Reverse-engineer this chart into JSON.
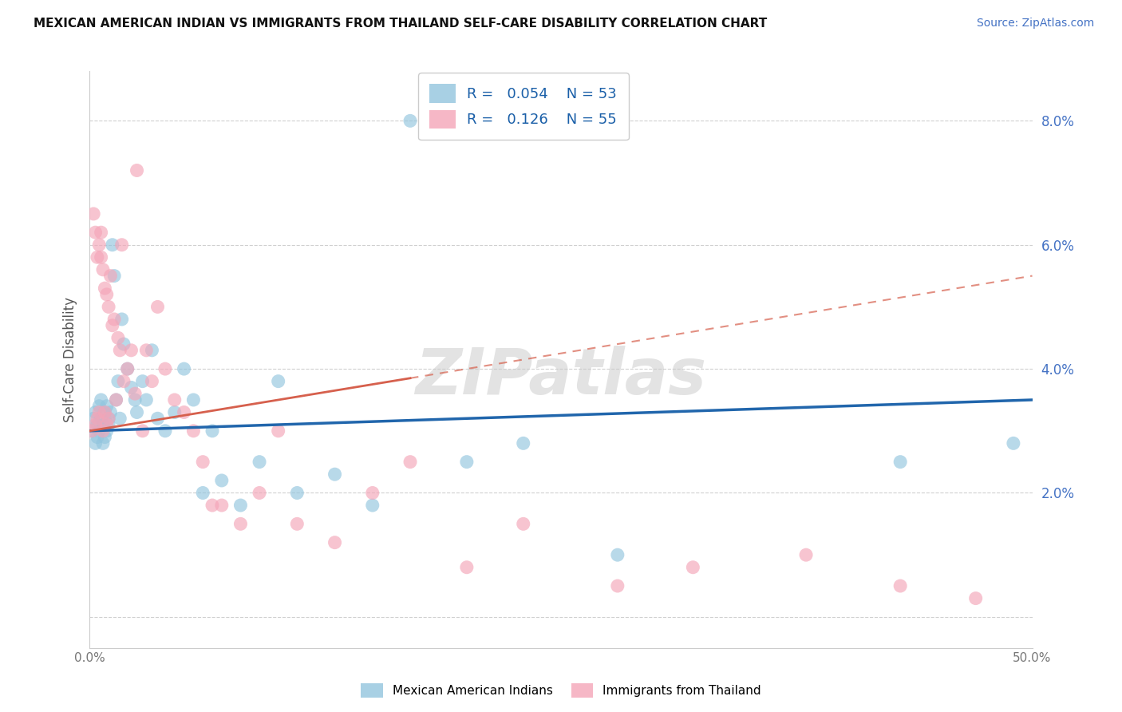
{
  "title": "MEXICAN AMERICAN INDIAN VS IMMIGRANTS FROM THAILAND SELF-CARE DISABILITY CORRELATION CHART",
  "source": "Source: ZipAtlas.com",
  "ylabel": "Self-Care Disability",
  "xlim": [
    0.0,
    0.5
  ],
  "ylim": [
    -0.005,
    0.088
  ],
  "yticks": [
    0.0,
    0.02,
    0.04,
    0.06,
    0.08
  ],
  "ytick_labels": [
    "",
    "2.0%",
    "4.0%",
    "6.0%",
    "8.0%"
  ],
  "xticks": [
    0.0,
    0.1,
    0.2,
    0.3,
    0.4,
    0.5
  ],
  "xtick_labels": [
    "0.0%",
    "",
    "",
    "",
    "",
    "50.0%"
  ],
  "blue_color": "#92c5de",
  "pink_color": "#f4a5b8",
  "blue_line_color": "#2166ac",
  "pink_line_color": "#d6604d",
  "R_blue": 0.054,
  "N_blue": 53,
  "R_pink": 0.126,
  "N_pink": 55,
  "watermark": "ZIPatlas",
  "blue_x": [
    0.001,
    0.002,
    0.003,
    0.003,
    0.004,
    0.004,
    0.005,
    0.005,
    0.006,
    0.006,
    0.007,
    0.007,
    0.008,
    0.008,
    0.009,
    0.009,
    0.01,
    0.01,
    0.011,
    0.012,
    0.013,
    0.014,
    0.015,
    0.016,
    0.017,
    0.018,
    0.02,
    0.022,
    0.024,
    0.025,
    0.028,
    0.03,
    0.033,
    0.036,
    0.04,
    0.045,
    0.05,
    0.055,
    0.06,
    0.065,
    0.07,
    0.08,
    0.09,
    0.1,
    0.11,
    0.13,
    0.15,
    0.17,
    0.2,
    0.23,
    0.28,
    0.43,
    0.49
  ],
  "blue_y": [
    0.03,
    0.032,
    0.028,
    0.033,
    0.031,
    0.029,
    0.034,
    0.03,
    0.032,
    0.035,
    0.028,
    0.031,
    0.033,
    0.029,
    0.03,
    0.034,
    0.031,
    0.032,
    0.033,
    0.06,
    0.055,
    0.035,
    0.038,
    0.032,
    0.048,
    0.044,
    0.04,
    0.037,
    0.035,
    0.033,
    0.038,
    0.035,
    0.043,
    0.032,
    0.03,
    0.033,
    0.04,
    0.035,
    0.02,
    0.03,
    0.022,
    0.018,
    0.025,
    0.038,
    0.02,
    0.023,
    0.018,
    0.08,
    0.025,
    0.028,
    0.01,
    0.025,
    0.028
  ],
  "pink_x": [
    0.001,
    0.002,
    0.003,
    0.003,
    0.004,
    0.004,
    0.005,
    0.005,
    0.006,
    0.006,
    0.007,
    0.007,
    0.008,
    0.008,
    0.009,
    0.009,
    0.01,
    0.01,
    0.011,
    0.012,
    0.013,
    0.014,
    0.015,
    0.016,
    0.017,
    0.018,
    0.02,
    0.022,
    0.024,
    0.025,
    0.028,
    0.03,
    0.033,
    0.036,
    0.04,
    0.045,
    0.05,
    0.055,
    0.06,
    0.065,
    0.07,
    0.08,
    0.09,
    0.1,
    0.11,
    0.13,
    0.15,
    0.17,
    0.2,
    0.23,
    0.28,
    0.32,
    0.38,
    0.43,
    0.47
  ],
  "pink_y": [
    0.03,
    0.065,
    0.031,
    0.062,
    0.032,
    0.058,
    0.033,
    0.06,
    0.062,
    0.058,
    0.03,
    0.056,
    0.033,
    0.053,
    0.031,
    0.052,
    0.05,
    0.032,
    0.055,
    0.047,
    0.048,
    0.035,
    0.045,
    0.043,
    0.06,
    0.038,
    0.04,
    0.043,
    0.036,
    0.072,
    0.03,
    0.043,
    0.038,
    0.05,
    0.04,
    0.035,
    0.033,
    0.03,
    0.025,
    0.018,
    0.018,
    0.015,
    0.02,
    0.03,
    0.015,
    0.012,
    0.02,
    0.025,
    0.008,
    0.015,
    0.005,
    0.008,
    0.01,
    0.005,
    0.003
  ],
  "blue_line_y0": 0.03,
  "blue_line_y1": 0.035,
  "pink_line_y0": 0.03,
  "pink_line_y1": 0.055
}
